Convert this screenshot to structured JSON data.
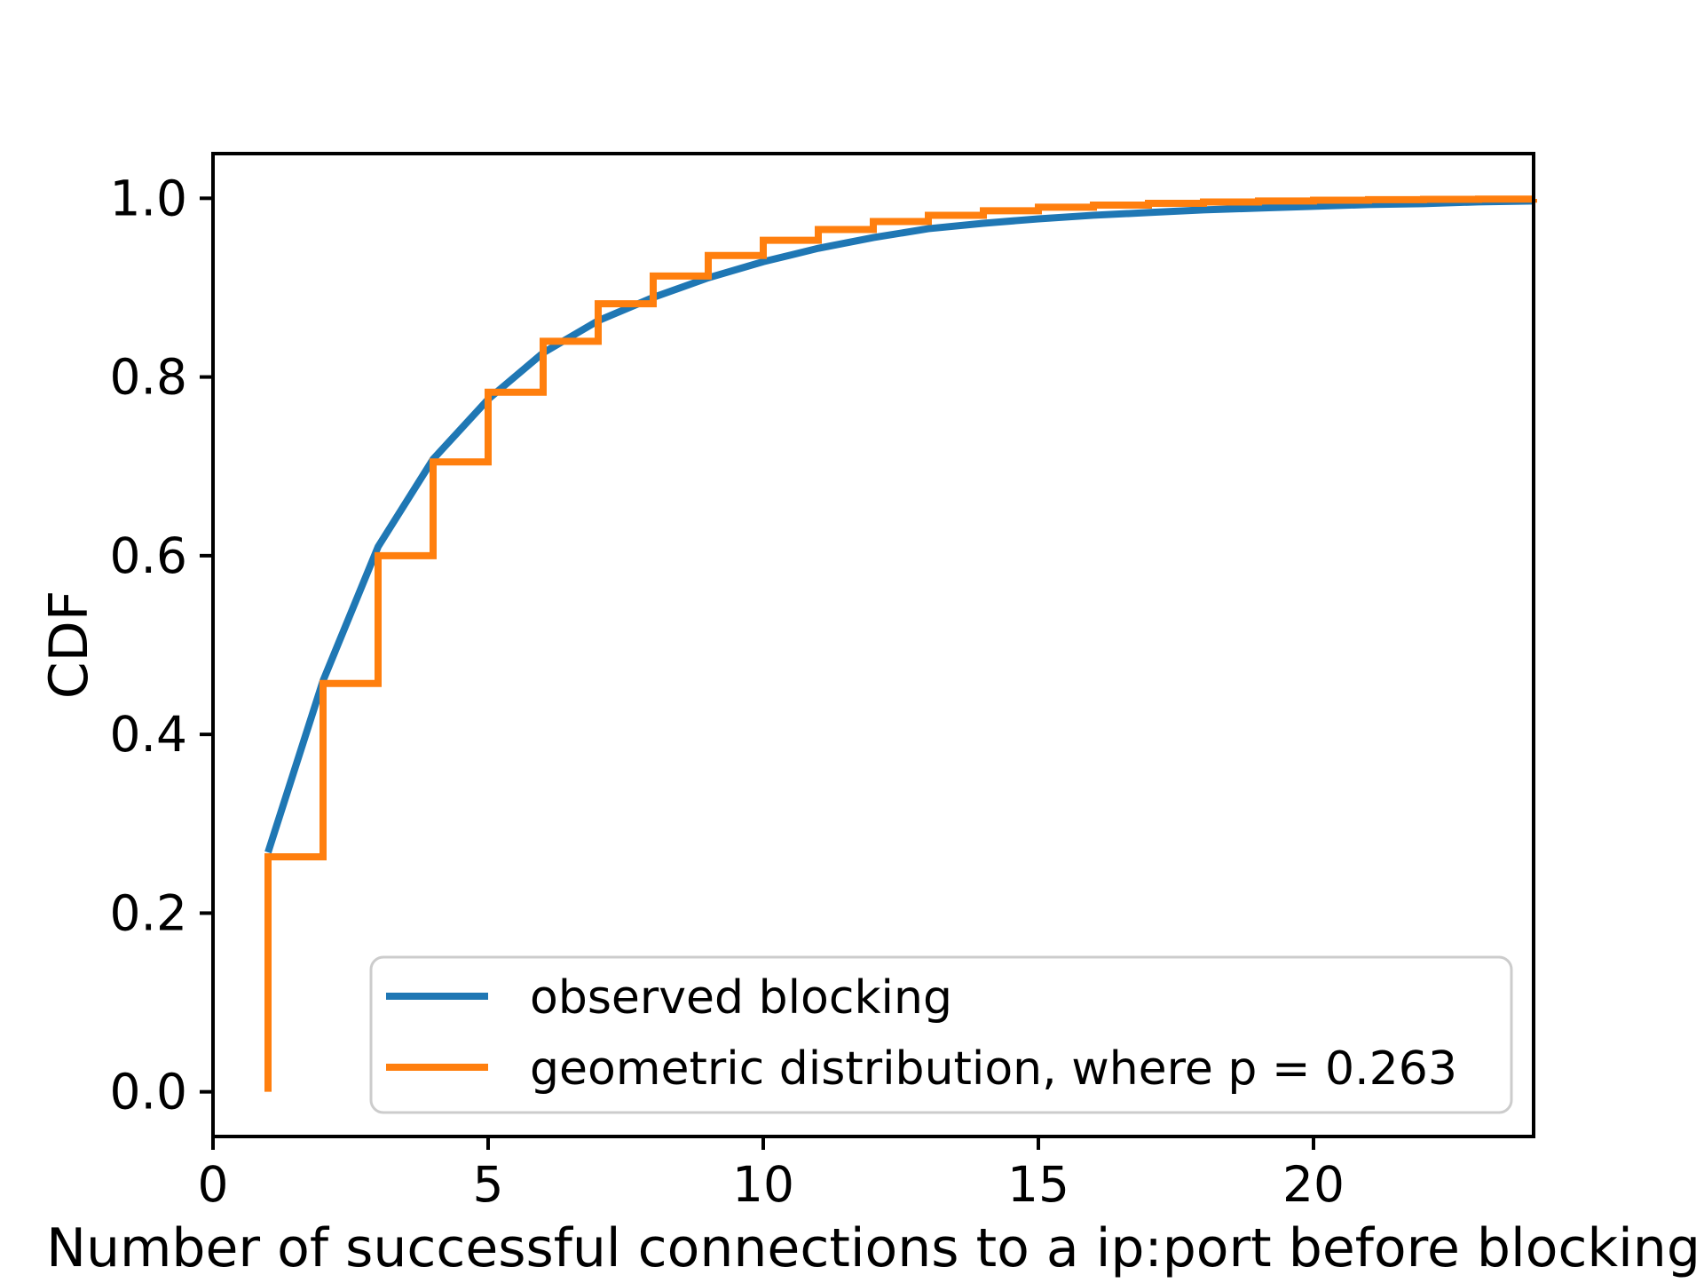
{
  "figure": {
    "background": "#ffffff",
    "spine_color": "#000000"
  },
  "chart_data": {
    "type": "line",
    "title": "",
    "xlabel": "Number of successful connections to a ip:port before blocking",
    "ylabel": "CDF",
    "xlim": [
      0,
      24
    ],
    "ylim": [
      -0.05,
      1.05
    ],
    "xticks": [
      0,
      5,
      10,
      15,
      20
    ],
    "xtick_labels": [
      "0",
      "5",
      "10",
      "15",
      "20"
    ],
    "yticks": [
      0.0,
      0.2,
      0.4,
      0.6,
      0.8,
      1.0
    ],
    "ytick_labels": [
      "0.0",
      "0.2",
      "0.4",
      "0.6",
      "0.8",
      "1.0"
    ],
    "grid": false,
    "legend_position": "lower-left-inside",
    "series": [
      {
        "name": "observed blocking",
        "color": "#1f77b4",
        "style": "line",
        "x": [
          1,
          2,
          3,
          4,
          5,
          6,
          7,
          8,
          9,
          10,
          11,
          12,
          13,
          14,
          15,
          16,
          17,
          18,
          19,
          20,
          21,
          22,
          23,
          24
        ],
        "y": [
          0.268,
          0.46,
          0.61,
          0.708,
          0.775,
          0.827,
          0.863,
          0.889,
          0.911,
          0.929,
          0.944,
          0.956,
          0.966,
          0.972,
          0.977,
          0.981,
          0.984,
          0.987,
          0.989,
          0.991,
          0.993,
          0.994,
          0.996,
          0.997
        ]
      },
      {
        "name": "geometric distribution, where p = 0.263",
        "color": "#ff7f0e",
        "style": "step-post",
        "p": 0.263,
        "start_y": 0.0,
        "x": [
          1,
          2,
          3,
          4,
          5,
          6,
          7,
          8,
          9,
          10,
          11,
          12,
          13,
          14,
          15,
          16,
          17,
          18,
          19,
          20,
          21,
          22,
          23,
          24
        ],
        "y": [
          0.263,
          0.457,
          0.6,
          0.705,
          0.783,
          0.84,
          0.882,
          0.913,
          0.936,
          0.953,
          0.965,
          0.974,
          0.981,
          0.986,
          0.99,
          0.9924,
          0.9944,
          0.9959,
          0.997,
          0.9978,
          0.9984,
          0.9988,
          0.9991,
          0.9993
        ]
      }
    ]
  }
}
